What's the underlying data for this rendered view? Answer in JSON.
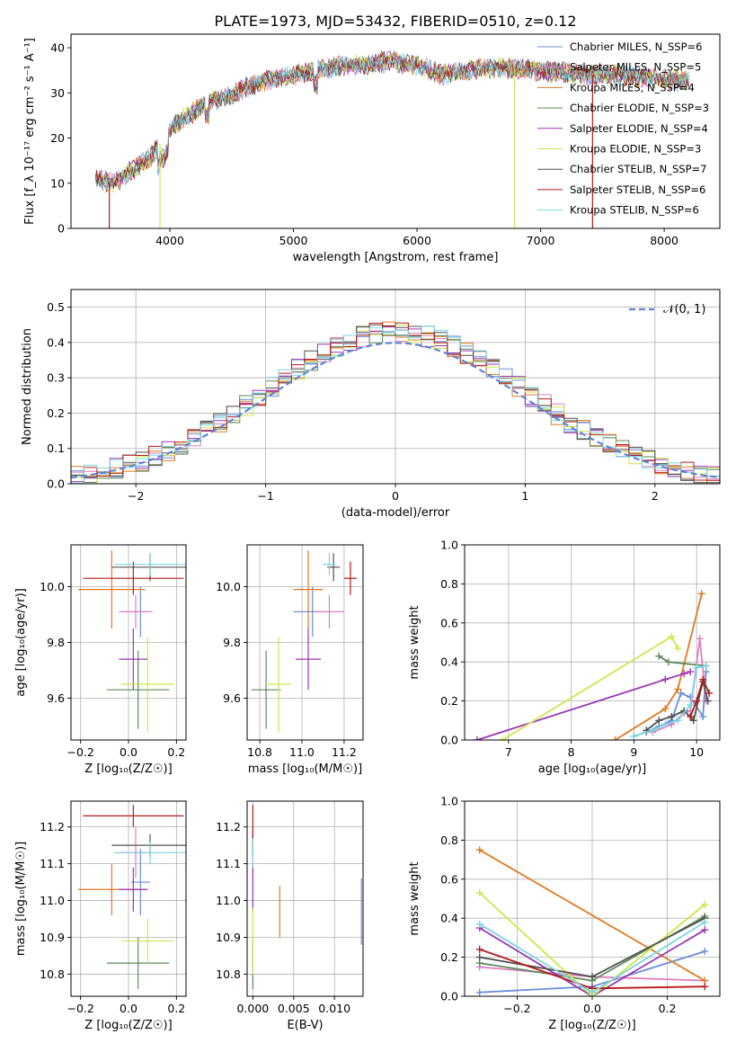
{
  "title": "PLATE=1973, MJD=53432, FIBERID=0510, z=0.12",
  "colors": {
    "chabrier_miles": "#6a8fd8",
    "salpeter_miles": "#e07fc0",
    "kroupa_miles": "#e07a1f",
    "chabrier_elodie": "#5a8a5a",
    "salpeter_elodie": "#9a35b5",
    "kroupa_elodie": "#cfe64b",
    "chabrier_stelib": "#505050",
    "salpeter_stelib": "#b51a1a",
    "kroupa_stelib": "#7ad6e0",
    "normal_curve": "#5b86d6"
  },
  "chart_data": [
    {
      "id": "spectrum",
      "type": "line",
      "xlabel": "wavelength [Angstrom, rest frame]",
      "ylabel": "Flux [f_λ 10⁻¹⁷ erg cm⁻² s⁻¹ A⁻¹]",
      "xlim": [
        3200,
        8450
      ],
      "ylim": [
        0,
        43
      ],
      "xticks": [
        "4000",
        "5000",
        "6000",
        "7000",
        "8000"
      ],
      "yticks": [
        "0",
        "10",
        "20",
        "30",
        "40"
      ],
      "grid": false,
      "legend_position": "top-right",
      "legend": [
        {
          "label": "Chabrier MILES, N_SSP=6",
          "color": "#6a8fd8"
        },
        {
          "label": "Salpeter MILES, N_SSP=5",
          "color": "#e07fc0"
        },
        {
          "label": "Kroupa MILES, N_SSP=4",
          "color": "#e07a1f"
        },
        {
          "label": "Chabrier ELODIE, N_SSP=3",
          "color": "#5a8a5a"
        },
        {
          "label": "Salpeter ELODIE, N_SSP=4",
          "color": "#9a35b5"
        },
        {
          "label": "Kroupa ELODIE, N_SSP=3",
          "color": "#cfe64b"
        },
        {
          "label": "Chabrier STELIB, N_SSP=7",
          "color": "#505050"
        },
        {
          "label": "Salpeter STELIB, N_SSP=6",
          "color": "#b51a1a"
        },
        {
          "label": "Kroupa STELIB, N_SSP=6",
          "color": "#7ad6e0"
        }
      ],
      "continuum": {
        "x": [
          3400,
          3550,
          3700,
          3850,
          4000,
          4150,
          4300,
          4450,
          4600,
          4800,
          5000,
          5200,
          5400,
          5600,
          5800,
          6000,
          6200,
          6400,
          6600,
          6800,
          7000,
          7200,
          7400,
          7600,
          7800,
          8000,
          8200
        ],
        "y": [
          11,
          10,
          13,
          16,
          22,
          25,
          28,
          29,
          31,
          33,
          34,
          35,
          36,
          36.5,
          37,
          36,
          34,
          35,
          35.5,
          35.5,
          35,
          34.5,
          34,
          34,
          33.5,
          33,
          32.5
        ]
      },
      "dropouts": [
        {
          "model": "Salpeter STELIB",
          "x": 3510
        },
        {
          "model": "Kroupa ELODIE",
          "x": 3920
        },
        {
          "model": "Kroupa ELODIE",
          "x": 6790
        },
        {
          "model": "Salpeter STELIB",
          "x": 7420
        }
      ]
    },
    {
      "id": "residual-histogram",
      "type": "line",
      "xlabel": "(data-model)/error",
      "ylabel": "Normed distribution",
      "xlim": [
        -2.5,
        2.5
      ],
      "ylim": [
        0,
        0.55
      ],
      "xticks": [
        "−2",
        "−1",
        "0",
        "1",
        "2"
      ],
      "yticks": [
        "0.0",
        "0.1",
        "0.2",
        "0.3",
        "0.4",
        "0.5"
      ],
      "grid": true,
      "legend_position": "top-right",
      "legend": [
        {
          "label": "𝒩(0, 1)",
          "color": "#5b86d6"
        }
      ],
      "bin_width": 0.1
    },
    {
      "id": "age-vs-Z",
      "type": "scatter",
      "xlabel": "Z [log₁₀(Z/Z☉)]",
      "ylabel": "age  [log₁₀(age/yr)]",
      "xlim": [
        -0.24,
        0.24
      ],
      "ylim": [
        9.45,
        10.15
      ],
      "xticks": [
        "−0.2",
        "0.0",
        "0.2"
      ],
      "yticks": [
        "9.6",
        "9.8",
        "10.0"
      ],
      "grid": true,
      "series": [
        {
          "name": "Chabrier MILES",
          "x": 0.05,
          "xerr": 0.04,
          "y": 9.91,
          "yerr": 0.09
        },
        {
          "name": "Salpeter MILES",
          "x": 0.03,
          "xerr": 0.07,
          "y": 9.91,
          "yerr": 0.06
        },
        {
          "name": "Kroupa MILES",
          "x": -0.07,
          "xerr": 0.14,
          "y": 9.99,
          "yerr": 0.14
        },
        {
          "name": "Chabrier ELODIE",
          "x": 0.04,
          "xerr": 0.13,
          "y": 9.63,
          "yerr": 0.14
        },
        {
          "name": "Salpeter ELODIE",
          "x": 0.02,
          "xerr": 0.06,
          "y": 9.74,
          "yerr": 0.11
        },
        {
          "name": "Kroupa ELODIE",
          "x": 0.08,
          "xerr": 0.11,
          "y": 9.65,
          "yerr": 0.17
        },
        {
          "name": "Chabrier STELIB",
          "x": 0.09,
          "xerr": 0.16,
          "y": 10.07,
          "yerr": 0.05
        },
        {
          "name": "Salpeter STELIB",
          "x": 0.02,
          "xerr": 0.21,
          "y": 10.03,
          "yerr": 0.06
        },
        {
          "name": "Kroupa STELIB",
          "x": 0.09,
          "xerr": 0.15,
          "y": 10.08,
          "yerr": 0.04
        }
      ]
    },
    {
      "id": "age-vs-mass",
      "type": "scatter",
      "xlabel": "mass [log₁₀(M/M☉)]",
      "ylabel": "",
      "xlim": [
        10.74,
        11.29
      ],
      "ylim": [
        9.45,
        10.15
      ],
      "xticks": [
        "10.8",
        "11.0",
        "11.2"
      ],
      "yticks": [
        "9.6",
        "9.8",
        "10.0"
      ],
      "grid": true,
      "series": [
        {
          "name": "Chabrier MILES",
          "x": 11.05,
          "xerr": 0.09,
          "y": 9.91,
          "yerr": 0.09
        },
        {
          "name": "Salpeter MILES",
          "x": 11.13,
          "xerr": 0.07,
          "y": 9.91,
          "yerr": 0.06
        },
        {
          "name": "Kroupa MILES",
          "x": 11.03,
          "xerr": 0.07,
          "y": 9.99,
          "yerr": 0.14
        },
        {
          "name": "Chabrier ELODIE",
          "x": 10.83,
          "xerr": 0.07,
          "y": 9.63,
          "yerr": 0.14
        },
        {
          "name": "Salpeter ELODIE",
          "x": 11.03,
          "xerr": 0.06,
          "y": 9.74,
          "yerr": 0.11
        },
        {
          "name": "Kroupa ELODIE",
          "x": 10.89,
          "xerr": 0.06,
          "y": 9.65,
          "yerr": 0.17
        },
        {
          "name": "Chabrier STELIB",
          "x": 11.15,
          "xerr": 0.03,
          "y": 10.07,
          "yerr": 0.05
        },
        {
          "name": "Salpeter STELIB",
          "x": 11.23,
          "xerr": 0.03,
          "y": 10.03,
          "yerr": 0.06
        },
        {
          "name": "Kroupa STELIB",
          "x": 11.13,
          "xerr": 0.03,
          "y": 10.08,
          "yerr": 0.04
        }
      ]
    },
    {
      "id": "mass-weight-vs-age",
      "type": "line",
      "xlabel": "age  [log₁₀(age/yr)]",
      "ylabel": "mass weight",
      "xlim": [
        6.3,
        10.37
      ],
      "ylim": [
        0,
        1
      ],
      "xticks": [
        "7",
        "8",
        "9",
        "10"
      ],
      "yticks": [
        "0.0",
        "0.2",
        "0.4",
        "0.6",
        "0.8",
        "1.0"
      ],
      "grid": true,
      "series": [
        {
          "name": "Chabrier MILES",
          "x": [
            9.0,
            9.2,
            9.4,
            9.6,
            9.75,
            9.9,
            10.1,
            10.15
          ],
          "y": [
            0.02,
            0.04,
            0.07,
            0.1,
            0.24,
            0.22,
            0.12,
            0.35
          ]
        },
        {
          "name": "Salpeter MILES",
          "x": [
            9.3,
            9.6,
            9.8,
            9.9,
            10.05,
            10.15
          ],
          "y": [
            0.04,
            0.08,
            0.14,
            0.15,
            0.52,
            0.2
          ]
        },
        {
          "name": "Kroupa MILES",
          "x": [
            8.7,
            9.5,
            9.7,
            10.08
          ],
          "y": [
            0.0,
            0.16,
            0.26,
            0.75
          ]
        },
        {
          "name": "Chabrier ELODIE",
          "x": [
            9.4,
            9.55,
            10.15
          ],
          "y": [
            0.43,
            0.4,
            0.38
          ]
        },
        {
          "name": "Salpeter ELODIE",
          "x": [
            6.5,
            9.5,
            9.8,
            9.9
          ],
          "y": [
            0.0,
            0.31,
            0.34,
            0.35
          ]
        },
        {
          "name": "Kroupa ELODIE",
          "x": [
            6.9,
            9.6,
            9.7
          ],
          "y": [
            0.0,
            0.53,
            0.47
          ]
        },
        {
          "name": "Chabrier STELIB",
          "x": [
            9.2,
            9.4,
            9.6,
            9.8,
            9.95,
            10.1,
            10.18
          ],
          "y": [
            0.05,
            0.1,
            0.12,
            0.15,
            0.1,
            0.3,
            0.2
          ]
        },
        {
          "name": "Salpeter STELIB",
          "x": [
            9.9,
            10.0,
            10.1,
            10.2
          ],
          "y": [
            0.12,
            0.2,
            0.31,
            0.24
          ]
        },
        {
          "name": "Kroupa STELIB",
          "x": [
            9.0,
            9.3,
            9.5,
            9.7,
            9.9,
            10.0,
            10.15
          ],
          "y": [
            0.02,
            0.05,
            0.08,
            0.1,
            0.18,
            0.37,
            0.38
          ]
        }
      ]
    },
    {
      "id": "mass-vs-Z",
      "type": "scatter",
      "xlabel": "Z [log₁₀(Z/Z☉)]",
      "ylabel": "mass [log₁₀(M/M☉)]",
      "xlim": [
        -0.24,
        0.24
      ],
      "ylim": [
        10.74,
        11.27
      ],
      "xticks": [
        "−0.2",
        "0.0",
        "0.2"
      ],
      "yticks": [
        "10.8",
        "10.9",
        "11.0",
        "11.1",
        "11.2"
      ],
      "grid": true,
      "series": [
        {
          "name": "Chabrier MILES",
          "x": 0.05,
          "xerr": 0.04,
          "y": 11.05,
          "yerr": 0.09
        },
        {
          "name": "Salpeter MILES",
          "x": 0.03,
          "xerr": 0.07,
          "y": 11.13,
          "yerr": 0.07
        },
        {
          "name": "Kroupa MILES",
          "x": -0.07,
          "xerr": 0.14,
          "y": 11.03,
          "yerr": 0.07
        },
        {
          "name": "Chabrier ELODIE",
          "x": 0.04,
          "xerr": 0.13,
          "y": 10.83,
          "yerr": 0.07
        },
        {
          "name": "Salpeter ELODIE",
          "x": 0.02,
          "xerr": 0.06,
          "y": 11.03,
          "yerr": 0.06
        },
        {
          "name": "Kroupa ELODIE",
          "x": 0.08,
          "xerr": 0.11,
          "y": 10.89,
          "yerr": 0.06
        },
        {
          "name": "Chabrier STELIB",
          "x": 0.09,
          "xerr": 0.16,
          "y": 11.15,
          "yerr": 0.03
        },
        {
          "name": "Salpeter STELIB",
          "x": 0.02,
          "xerr": 0.21,
          "y": 11.23,
          "yerr": 0.03
        },
        {
          "name": "Kroupa STELIB",
          "x": 0.09,
          "xerr": 0.15,
          "y": 11.13,
          "yerr": 0.03
        }
      ]
    },
    {
      "id": "mass-vs-ebv",
      "type": "scatter",
      "xlabel": "E(B-V)",
      "ylabel": "",
      "xlim": [
        -0.0007,
        0.0135
      ],
      "ylim": [
        10.74,
        11.27
      ],
      "xticks": [
        "0.000",
        "0.005",
        "0.010"
      ],
      "yticks": [
        "10.8",
        "10.9",
        "11.0",
        "11.1",
        "11.2"
      ],
      "grid": true,
      "series": [
        {
          "name": "Chabrier MILES",
          "x": 0.0133,
          "y": 10.97,
          "yerr": 0.09
        },
        {
          "name": "Salpeter MILES",
          "x": 0.0,
          "y": 11.13,
          "yerr": 0.07
        },
        {
          "name": "Kroupa MILES",
          "x": 0.0033,
          "y": 10.97,
          "yerr": 0.07
        },
        {
          "name": "Chabrier ELODIE",
          "x": 0.0,
          "y": 10.83,
          "yerr": 0.07
        },
        {
          "name": "Salpeter ELODIE",
          "x": 0.0,
          "y": 11.03,
          "yerr": 0.06
        },
        {
          "name": "Kroupa ELODIE",
          "x": 0.0,
          "y": 10.89,
          "yerr": 0.09
        },
        {
          "name": "Chabrier STELIB",
          "x": 0.0,
          "y": 11.15,
          "yerr": 0.03
        },
        {
          "name": "Salpeter STELIB",
          "x": 0.0,
          "y": 11.2,
          "yerr": 0.06
        },
        {
          "name": "Kroupa STELIB",
          "x": 0.0,
          "y": 11.13,
          "yerr": 0.04
        }
      ]
    },
    {
      "id": "mass-weight-vs-Z",
      "type": "line",
      "xlabel": "Z [log₁₀(Z/Z☉)]",
      "ylabel": "mass weight",
      "xlim": [
        -0.34,
        0.34
      ],
      "ylim": [
        0,
        1
      ],
      "xticks": [
        "−0.2",
        "0.0",
        "0.2"
      ],
      "yticks": [
        "0.0",
        "0.2",
        "0.4",
        "0.6",
        "0.8",
        "1.0"
      ],
      "grid": true,
      "series": [
        {
          "name": "Chabrier MILES",
          "x": [
            -0.3,
            0.0,
            0.3
          ],
          "y": [
            0.02,
            0.05,
            0.23
          ]
        },
        {
          "name": "Salpeter MILES",
          "x": [
            -0.3,
            0.0,
            0.3
          ],
          "y": [
            0.15,
            0.1,
            0.08
          ]
        },
        {
          "name": "Kroupa MILES",
          "x": [
            -0.3,
            0.3
          ],
          "y": [
            0.75,
            0.08
          ]
        },
        {
          "name": "Chabrier ELODIE",
          "x": [
            -0.3,
            0.0,
            0.3
          ],
          "y": [
            0.17,
            0.08,
            0.41
          ]
        },
        {
          "name": "Salpeter ELODIE",
          "x": [
            -0.3,
            0.0,
            0.3
          ],
          "y": [
            0.35,
            0.0,
            0.34
          ]
        },
        {
          "name": "Kroupa ELODIE",
          "x": [
            -0.3,
            0.0,
            0.3
          ],
          "y": [
            0.53,
            0.0,
            0.47
          ]
        },
        {
          "name": "Chabrier STELIB",
          "x": [
            -0.3,
            0.0,
            0.3
          ],
          "y": [
            0.2,
            0.1,
            0.4
          ]
        },
        {
          "name": "Salpeter STELIB",
          "x": [
            -0.3,
            0.0,
            0.3
          ],
          "y": [
            0.24,
            0.04,
            0.05
          ]
        },
        {
          "name": "Kroupa STELIB",
          "x": [
            -0.3,
            0.0,
            0.3
          ],
          "y": [
            0.37,
            0.02,
            0.38
          ]
        }
      ]
    }
  ]
}
